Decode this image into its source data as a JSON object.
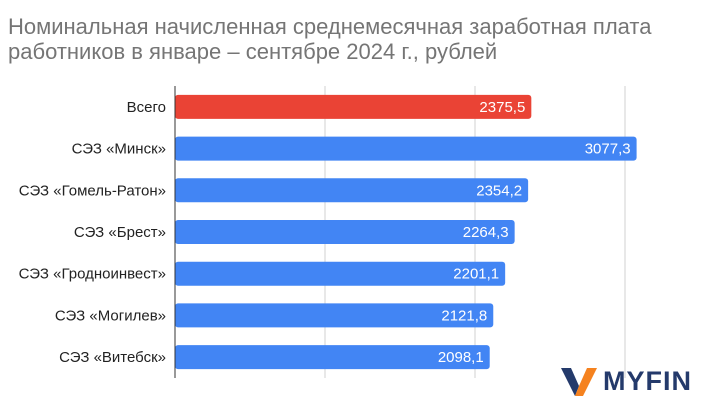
{
  "chart_data": {
    "type": "bar",
    "orientation": "horizontal",
    "title_lines": [
      "Номинальная начисленная среднемесячная заработная плата",
      "работников в январе – сентябре 2024 г., рублей"
    ],
    "categories": [
      "Всего",
      "СЭЗ «Минск»",
      "СЭЗ «Гомель-Ратон»",
      "СЭЗ «Брест»",
      "СЭЗ «Гродноинвест»",
      "СЭЗ «Могилев»",
      "СЭЗ «Витебск»"
    ],
    "values": [
      2375.5,
      3077.3,
      2354.2,
      2264.3,
      2201.1,
      2121.8,
      2098.1
    ],
    "value_labels": [
      "2375,5",
      "3077,3",
      "2354,2",
      "2264,3",
      "2201,1",
      "2121,8",
      "2098,1"
    ],
    "colors": [
      "#ea4335",
      "#4285f4",
      "#4285f4",
      "#4285f4",
      "#4285f4",
      "#4285f4",
      "#4285f4"
    ],
    "xlim": [
      0,
      3500
    ],
    "grid": true,
    "legend": "none"
  },
  "logo": {
    "text": "MYFIN",
    "icon": "myfin-v-logo-icon",
    "colors": {
      "blue": "#243a6b",
      "orange": "#f5821f"
    }
  }
}
